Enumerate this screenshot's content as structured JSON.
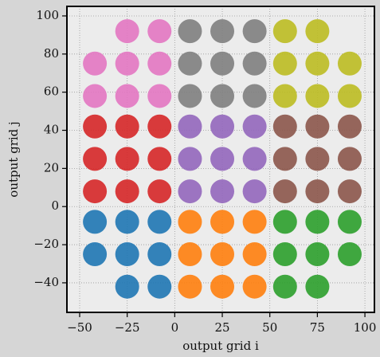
{
  "chart_data": {
    "type": "scatter",
    "xlabel": "output grid i",
    "ylabel": "output grid j",
    "xlim": [
      -56.7,
      105
    ],
    "ylim": [
      -55.5,
      105
    ],
    "xticks": [
      {
        "value": -50,
        "label": "−50"
      },
      {
        "value": -25,
        "label": "−25"
      },
      0,
      25,
      50,
      75,
      100
    ],
    "yticks": [
      {
        "value": -40,
        "label": "−40"
      },
      {
        "value": -20,
        "label": "−20"
      },
      0,
      20,
      40,
      60,
      80,
      100
    ],
    "grid": true,
    "series": [
      {
        "color": "#e377c2",
        "x": [
          -25,
          -8,
          -42,
          -25,
          -8,
          -42,
          -25,
          -8
        ],
        "values": [
          92,
          92,
          75,
          75,
          75,
          58,
          58,
          58
        ]
      },
      {
        "color": "#7f7f7f",
        "x": [
          8,
          25,
          42,
          8,
          25,
          42,
          8,
          25,
          42
        ],
        "values": [
          92,
          92,
          92,
          75,
          75,
          75,
          58,
          58,
          58
        ]
      },
      {
        "color": "#bcbd22",
        "x": [
          58,
          75,
          58,
          75,
          92,
          58,
          75,
          92
        ],
        "values": [
          92,
          92,
          75,
          75,
          75,
          58,
          58,
          58
        ]
      },
      {
        "color": "#d62728",
        "x": [
          -42,
          -25,
          -8,
          -42,
          -25,
          -8,
          -42,
          -25,
          -8
        ],
        "values": [
          42,
          42,
          42,
          25,
          25,
          25,
          8,
          8,
          8
        ]
      },
      {
        "color": "#9467bd",
        "x": [
          8,
          25,
          42,
          8,
          25,
          42,
          8,
          25,
          42
        ],
        "values": [
          42,
          42,
          42,
          25,
          25,
          25,
          8,
          8,
          8
        ]
      },
      {
        "color": "#8c564b",
        "x": [
          58,
          75,
          92,
          58,
          75,
          92,
          58,
          75,
          92
        ],
        "values": [
          42,
          42,
          42,
          25,
          25,
          25,
          8,
          8,
          8
        ]
      },
      {
        "color": "#1f77b4",
        "x": [
          -42,
          -25,
          -8,
          -42,
          -25,
          -8,
          -25,
          -8
        ],
        "values": [
          -8,
          -8,
          -8,
          -25,
          -25,
          -25,
          -42,
          -42
        ]
      },
      {
        "color": "#ff7f0e",
        "x": [
          8,
          25,
          42,
          8,
          25,
          42,
          8,
          25,
          42
        ],
        "values": [
          -8,
          -8,
          -8,
          -25,
          -25,
          -25,
          -42,
          -42,
          -42
        ]
      },
      {
        "color": "#2ca02c",
        "x": [
          58,
          75,
          92,
          58,
          75,
          92,
          58,
          75
        ],
        "values": [
          -8,
          -8,
          -8,
          -25,
          -25,
          -25,
          -42,
          -42
        ]
      }
    ]
  }
}
